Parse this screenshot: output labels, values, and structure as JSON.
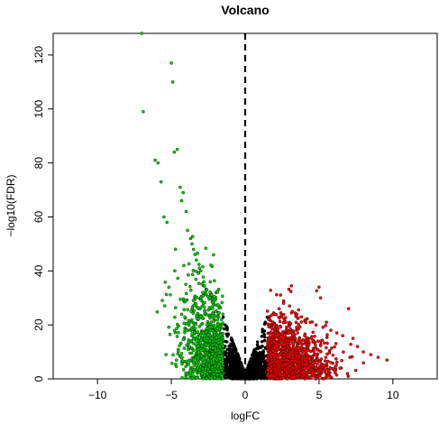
{
  "chart_data": {
    "type": "scatter",
    "title": "Volcano",
    "xlabel": "logFC",
    "ylabel": "−log10(FDR)",
    "xlim": [
      -13,
      13
    ],
    "ylim": [
      0,
      128
    ],
    "x_ticks": [
      -10,
      -5,
      0,
      5,
      10
    ],
    "y_ticks": [
      0,
      20,
      40,
      60,
      80,
      100,
      120
    ],
    "grid": false,
    "legend": "none",
    "vline": {
      "x": 0,
      "style": "dashed",
      "color": "#000000"
    },
    "colors": {
      "down": "#00cc00",
      "not_significant": "#000000",
      "up": "#ff0000",
      "point_edge": "#000000"
    },
    "series": [
      {
        "points_label": "down",
        "x": [
          -7.0,
          -6.9,
          -6.1,
          -5.9,
          -5.7,
          -5.5,
          -5.3,
          -5.0,
          -4.9,
          -4.8,
          -4.6,
          -4.4,
          -4.3,
          -4.2,
          -4.0,
          -3.9,
          -3.7,
          -3.6,
          -3.5,
          -3.3,
          -3.1,
          -3.0,
          -2.8,
          -2.6,
          -2.4,
          -2.2,
          -2.0,
          -1.8,
          -1.6
        ],
        "y": [
          128,
          99,
          81,
          80,
          73,
          60,
          58,
          117,
          110,
          84,
          85,
          71,
          66,
          69,
          62,
          55,
          52,
          50,
          48,
          44,
          41,
          40,
          36,
          33,
          30,
          27,
          25,
          23,
          22
        ]
      },
      {
        "points_label": "up",
        "x": [
          1.6,
          2.0,
          2.3,
          2.6,
          3.0,
          3.2,
          3.5,
          3.8,
          4.1,
          4.4,
          4.8,
          5.0,
          5.1,
          5.5,
          5.8,
          6.2,
          6.6,
          7.0,
          7.3,
          7.6,
          8.0,
          8.5,
          9.0,
          9.6
        ],
        "y": [
          22,
          24,
          26,
          28,
          27,
          25,
          24,
          23,
          22,
          21,
          20,
          34,
          30,
          21,
          18,
          17,
          16,
          26,
          15,
          12,
          10,
          9,
          8,
          7
        ]
      }
    ]
  }
}
